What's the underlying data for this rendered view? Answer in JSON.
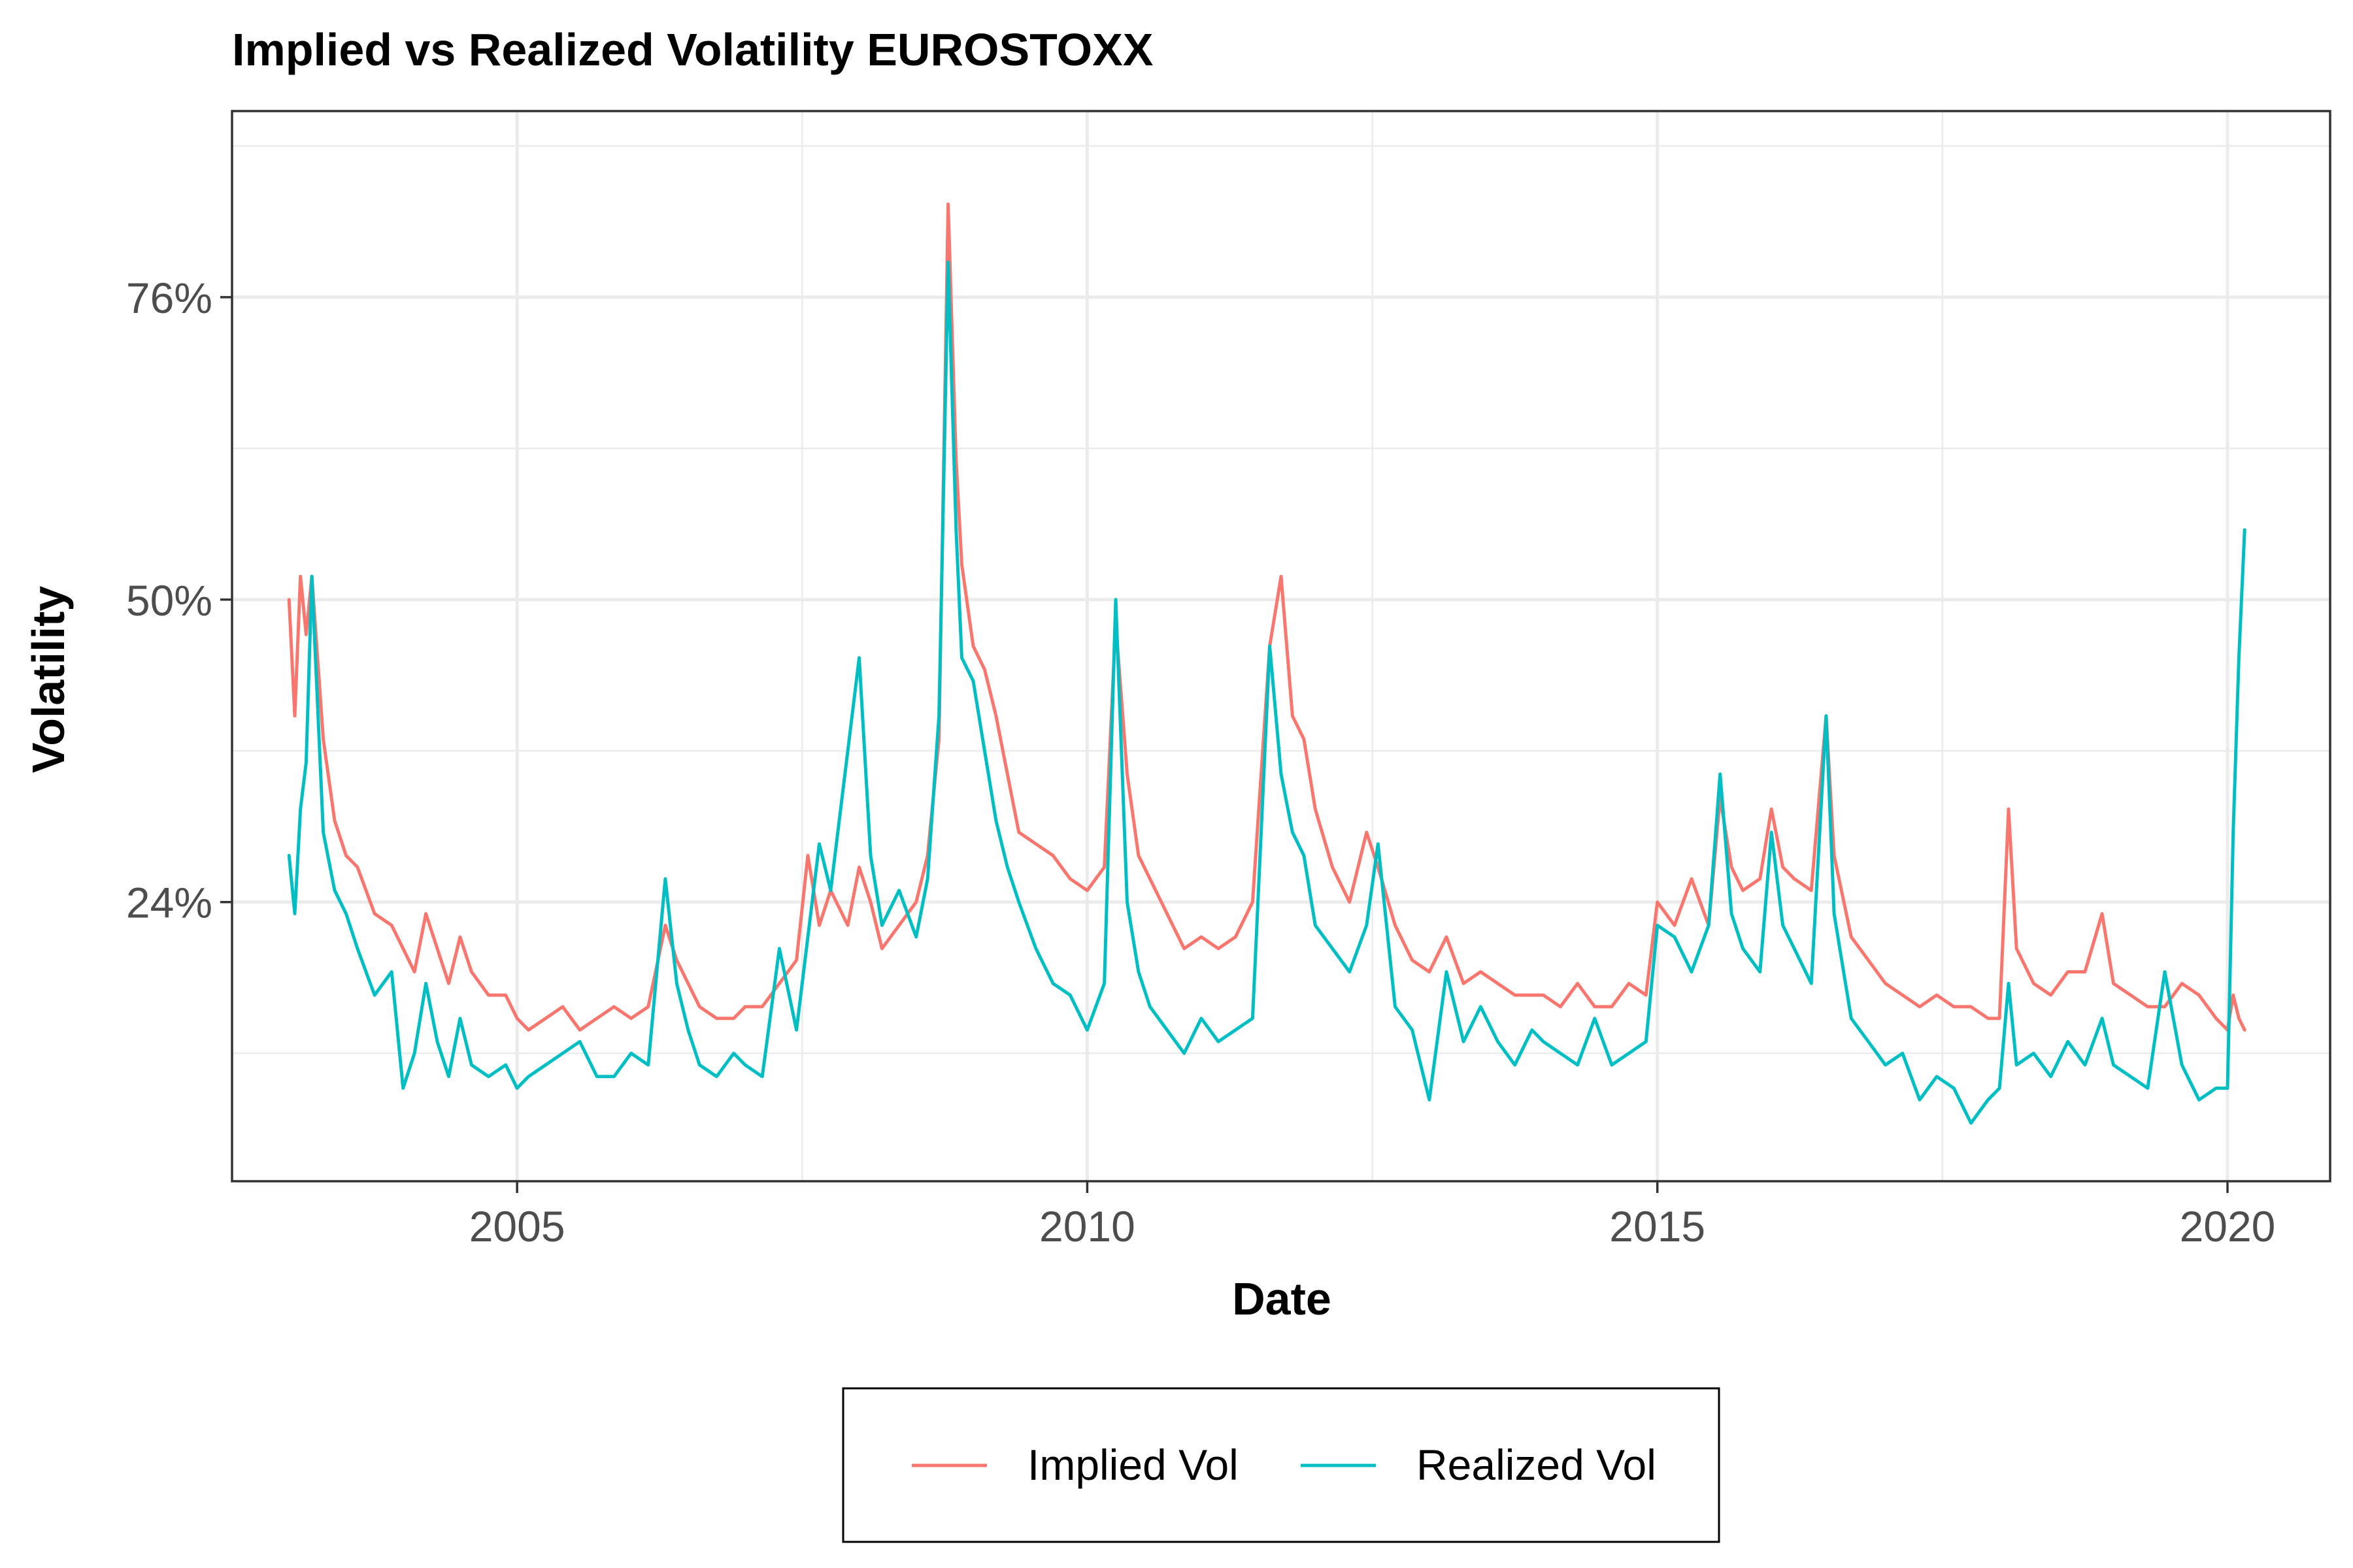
{
  "chart_data": {
    "type": "line",
    "title": "Implied vs Realized Volatility EUROSTOXX",
    "xlabel": "Date",
    "ylabel": "Volatility",
    "xlim": [
      2002.5,
      2020.9
    ],
    "ylim": [
      0.0,
      0.92
    ],
    "x_ticks": [
      2005,
      2010,
      2015,
      2020
    ],
    "x_tick_labels": [
      "2005",
      "2010",
      "2015",
      "2020"
    ],
    "y_ticks": [
      0.24,
      0.5,
      0.76
    ],
    "y_tick_labels": [
      "24%",
      "50%",
      "76%"
    ],
    "grid": true,
    "legend_position": "bottom",
    "series": [
      {
        "name": "Implied Vol",
        "color": "#F8766D",
        "x": [
          2003.0,
          2003.05,
          2003.1,
          2003.15,
          2003.2,
          2003.3,
          2003.4,
          2003.5,
          2003.6,
          2003.75,
          2003.9,
          2004.0,
          2004.1,
          2004.2,
          2004.3,
          2004.4,
          2004.5,
          2004.6,
          2004.75,
          2004.9,
          2005.0,
          2005.1,
          2005.25,
          2005.4,
          2005.55,
          2005.7,
          2005.85,
          2006.0,
          2006.15,
          2006.3,
          2006.4,
          2006.5,
          2006.6,
          2006.75,
          2006.9,
          2007.0,
          2007.15,
          2007.3,
          2007.45,
          2007.55,
          2007.65,
          2007.75,
          2007.9,
          2008.0,
          2008.1,
          2008.2,
          2008.35,
          2008.5,
          2008.6,
          2008.7,
          2008.78,
          2008.85,
          2008.9,
          2009.0,
          2009.1,
          2009.2,
          2009.3,
          2009.4,
          2009.55,
          2009.7,
          2009.85,
          2010.0,
          2010.15,
          2010.25,
          2010.35,
          2010.45,
          2010.55,
          2010.7,
          2010.85,
          2011.0,
          2011.15,
          2011.3,
          2011.45,
          2011.6,
          2011.7,
          2011.8,
          2011.9,
          2012.0,
          2012.15,
          2012.3,
          2012.45,
          2012.55,
          2012.7,
          2012.85,
          2013.0,
          2013.15,
          2013.3,
          2013.45,
          2013.6,
          2013.75,
          2013.9,
          2014.0,
          2014.15,
          2014.3,
          2014.45,
          2014.6,
          2014.75,
          2014.9,
          2015.0,
          2015.15,
          2015.3,
          2015.45,
          2015.55,
          2015.65,
          2015.75,
          2015.9,
          2016.0,
          2016.1,
          2016.2,
          2016.35,
          2016.48,
          2016.55,
          2016.7,
          2016.85,
          2017.0,
          2017.15,
          2017.3,
          2017.45,
          2017.6,
          2017.75,
          2017.9,
          2018.0,
          2018.08,
          2018.15,
          2018.3,
          2018.45,
          2018.6,
          2018.75,
          2018.9,
          2019.0,
          2019.15,
          2019.3,
          2019.45,
          2019.6,
          2019.75,
          2019.9,
          2020.0,
          2020.05,
          2020.1,
          2020.15
        ],
        "y": [
          0.5,
          0.4,
          0.52,
          0.47,
          0.52,
          0.38,
          0.31,
          0.28,
          0.27,
          0.23,
          0.22,
          0.2,
          0.18,
          0.23,
          0.2,
          0.17,
          0.21,
          0.18,
          0.16,
          0.16,
          0.14,
          0.13,
          0.14,
          0.15,
          0.13,
          0.14,
          0.15,
          0.14,
          0.15,
          0.22,
          0.19,
          0.17,
          0.15,
          0.14,
          0.14,
          0.15,
          0.15,
          0.17,
          0.19,
          0.28,
          0.22,
          0.25,
          0.22,
          0.27,
          0.24,
          0.2,
          0.22,
          0.24,
          0.28,
          0.38,
          0.84,
          0.62,
          0.53,
          0.46,
          0.44,
          0.4,
          0.35,
          0.3,
          0.29,
          0.28,
          0.26,
          0.25,
          0.27,
          0.48,
          0.35,
          0.28,
          0.26,
          0.23,
          0.2,
          0.21,
          0.2,
          0.21,
          0.24,
          0.46,
          0.52,
          0.4,
          0.38,
          0.32,
          0.27,
          0.24,
          0.3,
          0.27,
          0.22,
          0.19,
          0.18,
          0.21,
          0.17,
          0.18,
          0.17,
          0.16,
          0.16,
          0.16,
          0.15,
          0.17,
          0.15,
          0.15,
          0.17,
          0.16,
          0.24,
          0.22,
          0.26,
          0.22,
          0.33,
          0.27,
          0.25,
          0.26,
          0.32,
          0.27,
          0.26,
          0.25,
          0.4,
          0.28,
          0.21,
          0.19,
          0.17,
          0.16,
          0.15,
          0.16,
          0.15,
          0.15,
          0.14,
          0.14,
          0.32,
          0.2,
          0.17,
          0.16,
          0.18,
          0.18,
          0.23,
          0.17,
          0.16,
          0.15,
          0.15,
          0.17,
          0.16,
          0.14,
          0.13,
          0.16,
          0.14,
          0.13
        ]
      },
      {
        "name": "Realized Vol",
        "color": "#00BFC4",
        "x": [
          2003.0,
          2003.05,
          2003.1,
          2003.15,
          2003.2,
          2003.3,
          2003.4,
          2003.5,
          2003.6,
          2003.75,
          2003.9,
          2004.0,
          2004.1,
          2004.2,
          2004.3,
          2004.4,
          2004.5,
          2004.6,
          2004.75,
          2004.9,
          2005.0,
          2005.1,
          2005.25,
          2005.4,
          2005.55,
          2005.7,
          2005.85,
          2006.0,
          2006.15,
          2006.3,
          2006.4,
          2006.5,
          2006.6,
          2006.75,
          2006.9,
          2007.0,
          2007.15,
          2007.3,
          2007.45,
          2007.55,
          2007.65,
          2007.75,
          2007.9,
          2008.0,
          2008.1,
          2008.2,
          2008.35,
          2008.5,
          2008.6,
          2008.7,
          2008.78,
          2008.85,
          2008.9,
          2009.0,
          2009.1,
          2009.2,
          2009.3,
          2009.4,
          2009.55,
          2009.7,
          2009.85,
          2010.0,
          2010.15,
          2010.25,
          2010.35,
          2010.45,
          2010.55,
          2010.7,
          2010.85,
          2011.0,
          2011.15,
          2011.3,
          2011.45,
          2011.6,
          2011.7,
          2011.8,
          2011.9,
          2012.0,
          2012.15,
          2012.3,
          2012.45,
          2012.55,
          2012.7,
          2012.85,
          2013.0,
          2013.15,
          2013.3,
          2013.45,
          2013.6,
          2013.75,
          2013.9,
          2014.0,
          2014.15,
          2014.3,
          2014.45,
          2014.6,
          2014.75,
          2014.9,
          2015.0,
          2015.15,
          2015.3,
          2015.45,
          2015.55,
          2015.65,
          2015.75,
          2015.9,
          2016.0,
          2016.1,
          2016.2,
          2016.35,
          2016.48,
          2016.55,
          2016.7,
          2016.85,
          2017.0,
          2017.15,
          2017.3,
          2017.45,
          2017.6,
          2017.75,
          2017.9,
          2018.0,
          2018.08,
          2018.15,
          2018.3,
          2018.45,
          2018.6,
          2018.75,
          2018.9,
          2019.0,
          2019.15,
          2019.3,
          2019.45,
          2019.6,
          2019.75,
          2019.9,
          2020.0,
          2020.05,
          2020.1,
          2020.15
        ],
        "y": [
          0.28,
          0.23,
          0.32,
          0.36,
          0.52,
          0.3,
          0.25,
          0.23,
          0.2,
          0.16,
          0.18,
          0.08,
          0.11,
          0.17,
          0.12,
          0.09,
          0.14,
          0.1,
          0.09,
          0.1,
          0.08,
          0.09,
          0.1,
          0.11,
          0.12,
          0.09,
          0.09,
          0.11,
          0.1,
          0.26,
          0.17,
          0.13,
          0.1,
          0.09,
          0.11,
          0.1,
          0.09,
          0.2,
          0.13,
          0.21,
          0.29,
          0.25,
          0.37,
          0.45,
          0.28,
          0.22,
          0.25,
          0.21,
          0.26,
          0.4,
          0.79,
          0.56,
          0.45,
          0.43,
          0.37,
          0.31,
          0.27,
          0.24,
          0.2,
          0.17,
          0.16,
          0.13,
          0.17,
          0.5,
          0.24,
          0.18,
          0.15,
          0.13,
          0.11,
          0.14,
          0.12,
          0.13,
          0.14,
          0.46,
          0.35,
          0.3,
          0.28,
          0.22,
          0.2,
          0.18,
          0.22,
          0.29,
          0.15,
          0.13,
          0.07,
          0.18,
          0.12,
          0.15,
          0.12,
          0.1,
          0.13,
          0.12,
          0.11,
          0.1,
          0.14,
          0.1,
          0.11,
          0.12,
          0.22,
          0.21,
          0.18,
          0.22,
          0.35,
          0.23,
          0.2,
          0.18,
          0.3,
          0.22,
          0.2,
          0.17,
          0.4,
          0.23,
          0.14,
          0.12,
          0.1,
          0.11,
          0.07,
          0.09,
          0.08,
          0.05,
          0.07,
          0.08,
          0.17,
          0.1,
          0.11,
          0.09,
          0.12,
          0.1,
          0.14,
          0.1,
          0.09,
          0.08,
          0.18,
          0.1,
          0.07,
          0.08,
          0.08,
          0.3,
          0.45,
          0.56
        ]
      }
    ]
  }
}
